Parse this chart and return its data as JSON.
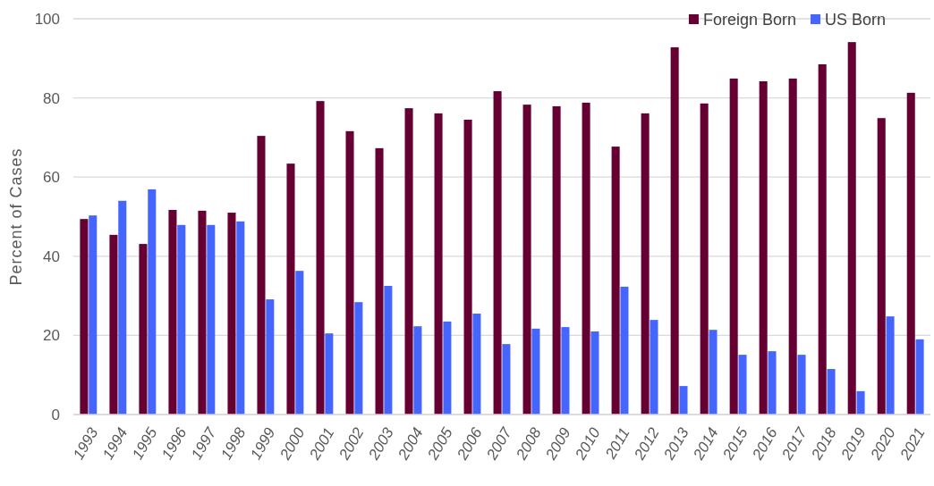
{
  "chart_data": {
    "type": "bar",
    "ylabel": "Percent of Cases",
    "categories": [
      "1993",
      "1994",
      "1995",
      "1996",
      "1997",
      "1998",
      "1999",
      "2000",
      "2001",
      "2002",
      "2003",
      "2004",
      "2005",
      "2006",
      "2007",
      "2008",
      "2009",
      "2010",
      "2011",
      "2012",
      "2013",
      "2014",
      "2015",
      "2016",
      "2017",
      "2018",
      "2019",
      "2020",
      "2021"
    ],
    "series": [
      {
        "name": "Foreign Born",
        "color": "#660033",
        "values": [
          49.4,
          45.4,
          43.1,
          51.7,
          51.5,
          51,
          70.4,
          63.4,
          79.2,
          71.6,
          67.3,
          77.4,
          76.1,
          74.5,
          81.7,
          78.3,
          77.9,
          78.8,
          67.7,
          76.1,
          92.8,
          78.6,
          84.9,
          84.2,
          84.9,
          88.5,
          94.1,
          74.9,
          81.3
        ]
      },
      {
        "name": "US Born",
        "color": "#4466ff",
        "values": [
          50.3,
          54,
          56.9,
          47.9,
          47.9,
          48.8,
          29.1,
          36.3,
          20.5,
          28.4,
          32.5,
          22.3,
          23.5,
          25.5,
          17.8,
          21.7,
          22.1,
          21,
          32.3,
          23.9,
          7.2,
          21.4,
          15.1,
          16,
          15.1,
          11.5,
          5.9,
          24.8,
          19
        ]
      }
    ],
    "ylim": [
      0,
      100
    ],
    "yticks": [
      0,
      20,
      40,
      60,
      80,
      100
    ],
    "grid": "y",
    "legend": "top right"
  }
}
